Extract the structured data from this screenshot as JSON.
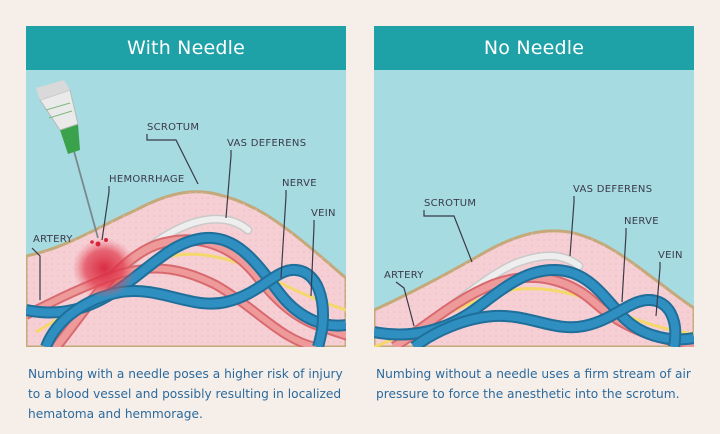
{
  "left_panel": {
    "title": "With Needle",
    "labels": {
      "scrotum": "SCROTUM",
      "hemorrhage": "HEMORRHAGE",
      "vas_deferens": "VAS DEFERENS",
      "nerve": "NERVE",
      "vein": "VEIN",
      "artery": "ARTERY"
    },
    "caption": "Numbing with a needle poses a higher risk of injury to a blood vessel and possibly resulting in localized hematoma and hemmorage."
  },
  "right_panel": {
    "title": "No Needle",
    "labels": {
      "scrotum": "SCROTUM",
      "vas_deferens": "VAS DEFERENS",
      "nerve": "NERVE",
      "vein": "VEIN",
      "artery": "ARTERY"
    },
    "caption": "Numbing without a needle uses a firm stream of air pressure to force the anesthetic into the scrotum."
  },
  "colors": {
    "header": "#1ea1a7",
    "sky": "#a6dbe1",
    "skin": "#f6cfd4",
    "skin_edge": "#c4a97a",
    "vein": "#2e8fc0",
    "artery": "#e88585",
    "vas_deferens": "#e4e4e4",
    "nerve": "#f4d86a",
    "hemorrhage": "#d8243a",
    "caption_text": "#2b6a9e"
  }
}
